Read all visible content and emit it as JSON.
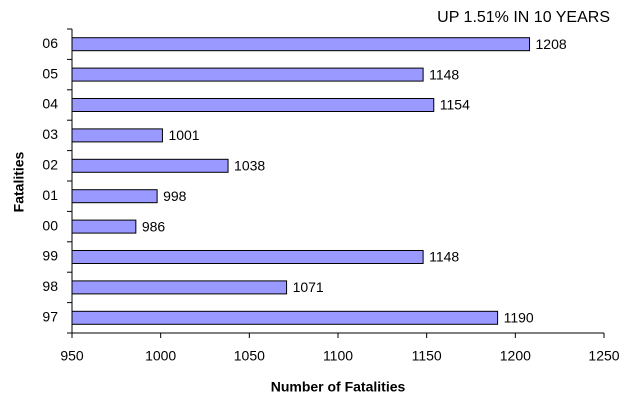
{
  "chart_data": {
    "type": "barh",
    "subtitle": "UP 1.51% IN 10 YEARS",
    "xlabel": "Number of Fatalities",
    "ylabel": "Fatalities",
    "categories": [
      "06",
      "05",
      "04",
      "03",
      "02",
      "01",
      "00",
      "99",
      "98",
      "97"
    ],
    "values": [
      1208,
      1148,
      1154,
      1001,
      1038,
      998,
      986,
      1148,
      1071,
      1190
    ],
    "color": "#9999ff",
    "xlim": [
      950,
      1250
    ],
    "xticks": [
      950,
      1000,
      1050,
      1100,
      1150,
      1200,
      1250
    ],
    "grid": false
  }
}
